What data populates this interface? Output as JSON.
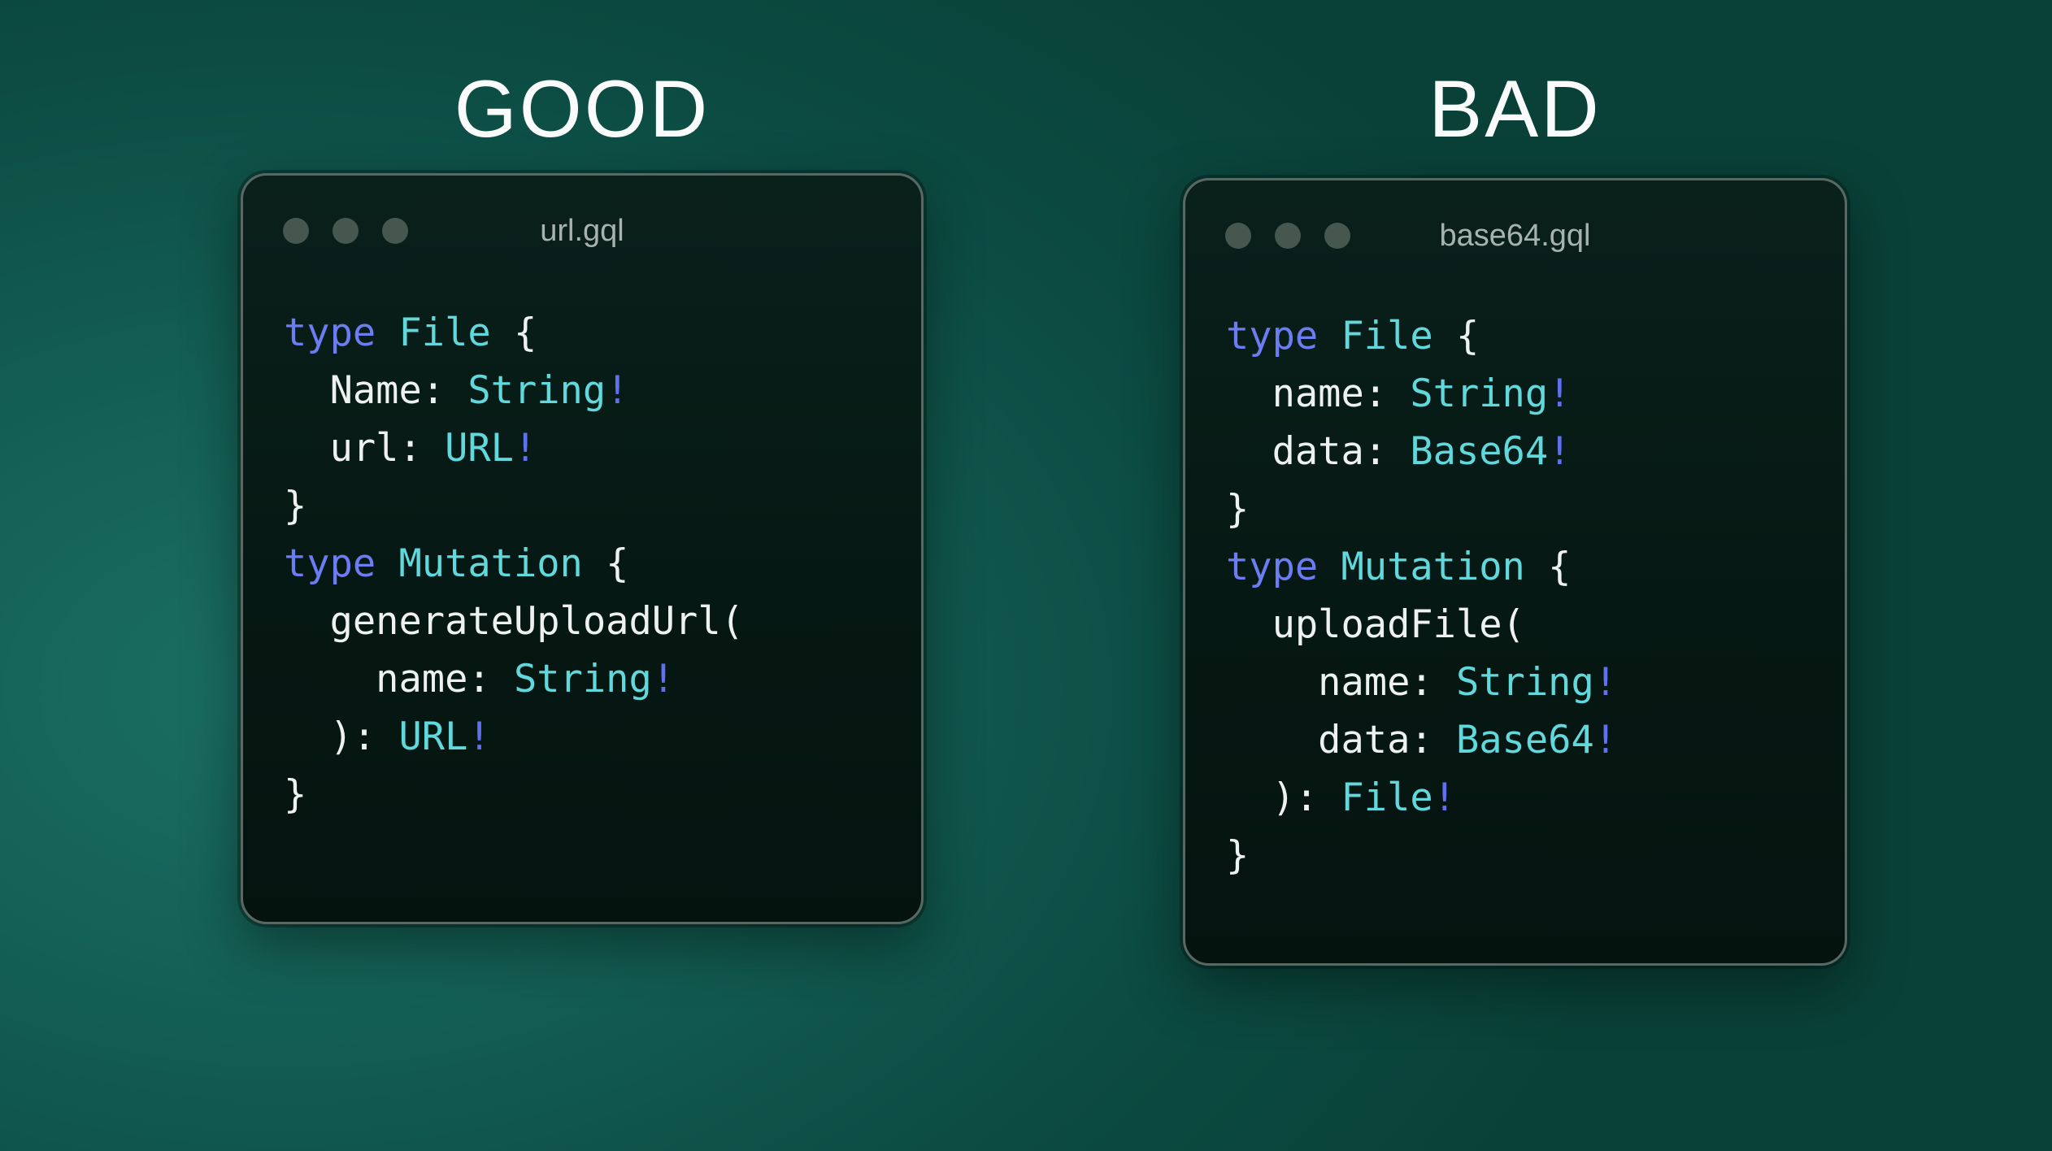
{
  "panels": [
    {
      "verdict": "GOOD",
      "window": {
        "filename": "url.gql",
        "control_dots": 3,
        "code": [
          [
            [
              "kw",
              "type"
            ],
            [
              "pl",
              " "
            ],
            [
              "ty",
              "File"
            ],
            [
              "pl",
              " {"
            ]
          ],
          [
            [
              "pl",
              "  Name: "
            ],
            [
              "ty",
              "String"
            ],
            [
              "bang",
              "!"
            ]
          ],
          [
            [
              "pl",
              "  url: "
            ],
            [
              "ty",
              "URL"
            ],
            [
              "bang",
              "!"
            ]
          ],
          [
            [
              "pl",
              "}"
            ]
          ],
          [
            [
              "kw",
              "type"
            ],
            [
              "pl",
              " "
            ],
            [
              "ty",
              "Mutation"
            ],
            [
              "pl",
              " {"
            ]
          ],
          [
            [
              "pl",
              "  generateUploadUrl("
            ]
          ],
          [
            [
              "pl",
              "    name: "
            ],
            [
              "ty",
              "String"
            ],
            [
              "bang",
              "!"
            ]
          ],
          [
            [
              "pl",
              "  ): "
            ],
            [
              "ty",
              "URL"
            ],
            [
              "bang",
              "!"
            ]
          ],
          [
            [
              "pl",
              "}"
            ]
          ]
        ]
      }
    },
    {
      "verdict": "BAD",
      "window": {
        "filename": "base64.gql",
        "control_dots": 3,
        "code": [
          [
            [
              "kw",
              "type"
            ],
            [
              "pl",
              " "
            ],
            [
              "ty",
              "File"
            ],
            [
              "pl",
              " {"
            ]
          ],
          [
            [
              "pl",
              "  name: "
            ],
            [
              "ty",
              "String"
            ],
            [
              "bang",
              "!"
            ]
          ],
          [
            [
              "pl",
              "  data: "
            ],
            [
              "ty",
              "Base64"
            ],
            [
              "bang",
              "!"
            ]
          ],
          [
            [
              "pl",
              "}"
            ]
          ],
          [
            [
              "kw",
              "type"
            ],
            [
              "pl",
              " "
            ],
            [
              "ty",
              "Mutation"
            ],
            [
              "pl",
              " {"
            ]
          ],
          [
            [
              "pl",
              "  uploadFile("
            ]
          ],
          [
            [
              "pl",
              "    name: "
            ],
            [
              "ty",
              "String"
            ],
            [
              "bang",
              "!"
            ]
          ],
          [
            [
              "pl",
              "    data: "
            ],
            [
              "ty",
              "Base64"
            ],
            [
              "bang",
              "!"
            ]
          ],
          [
            [
              "pl",
              "  ): "
            ],
            [
              "ty",
              "File"
            ],
            [
              "bang",
              "!"
            ]
          ],
          [
            [
              "pl",
              "}"
            ]
          ]
        ]
      }
    }
  ],
  "colors": {
    "background_light": "#1b6f63",
    "background_dark": "#094138",
    "window_background_top": "#0a201b",
    "window_background_bottom": "#05130f",
    "window_border": "#5a6863",
    "control_dot": "#465750",
    "filename_text": "#a7b3af",
    "title_text": "#fafcfb",
    "syntax_keyword": "#6c7df3",
    "syntax_typename": "#60d8dc",
    "syntax_plain": "#edf2f0",
    "syntax_bang": "#6070f0"
  }
}
